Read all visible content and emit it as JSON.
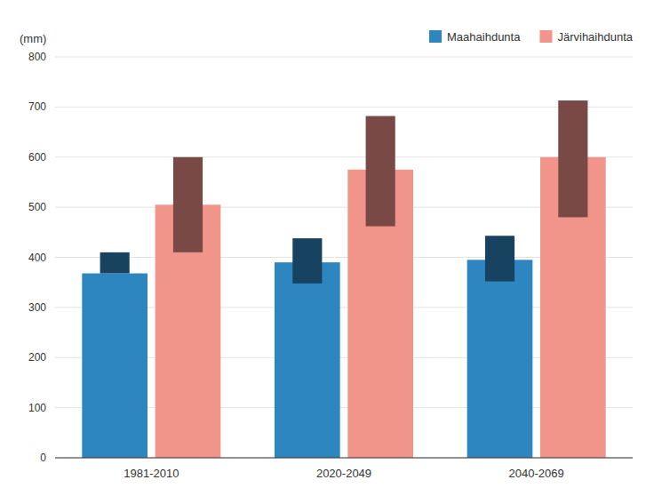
{
  "chart_data": {
    "type": "bar",
    "y_label": "(mm)",
    "categories": [
      "1981-2010",
      "2020-2049",
      "2040-2069"
    ],
    "series": [
      {
        "name": "Maahaihdunta",
        "color": "#2E86C1",
        "values": [
          368,
          390,
          395
        ],
        "min": [
          368,
          348,
          352
        ],
        "max": [
          410,
          438,
          443
        ]
      },
      {
        "name": "Järvihaihdunta",
        "color": "#F1948A",
        "values": [
          505,
          575,
          600
        ],
        "min": [
          410,
          462,
          480
        ],
        "max": [
          600,
          682,
          713
        ]
      }
    ],
    "ylim": [
      0,
      800
    ],
    "yticks": [
      0,
      100,
      200,
      300,
      400,
      500,
      600,
      700,
      800
    ],
    "grid": true,
    "legend": "top"
  }
}
